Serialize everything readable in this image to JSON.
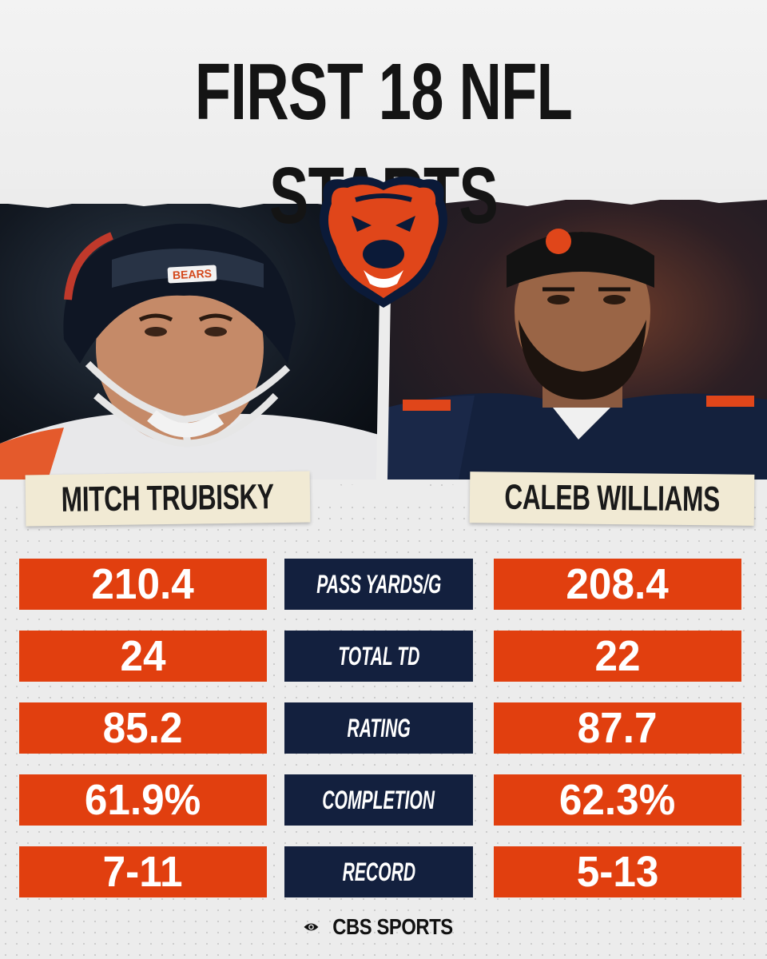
{
  "title": "FIRST 18 NFL STARTS",
  "logo": {
    "icon": "bears-logo-icon",
    "colors": {
      "fill": "#e0461a",
      "outline": "#0b1a38"
    }
  },
  "players": [
    {
      "name": "MITCH TRUBISKY",
      "helmet_text": "BEARS"
    },
    {
      "name": "CALEB WILLIAMS"
    }
  ],
  "stats": [
    {
      "label": "PASS YARDS/G",
      "left": "210.4",
      "right": "208.4"
    },
    {
      "label": "TOTAL TD",
      "left": "24",
      "right": "22"
    },
    {
      "label": "RATING",
      "left": "85.2",
      "right": "87.7"
    },
    {
      "label": "COMPLETION",
      "left": "61.9%",
      "right": "62.3%"
    },
    {
      "label": "RECORD",
      "left": "7-11",
      "right": "5-13"
    }
  ],
  "brand": {
    "text": "CBS SPORTS",
    "icon": "cbs-eye-icon"
  },
  "colors": {
    "orange": "#e13f0f",
    "navy": "#13203e",
    "paper": "#f1ead4",
    "background": "#ececec"
  }
}
